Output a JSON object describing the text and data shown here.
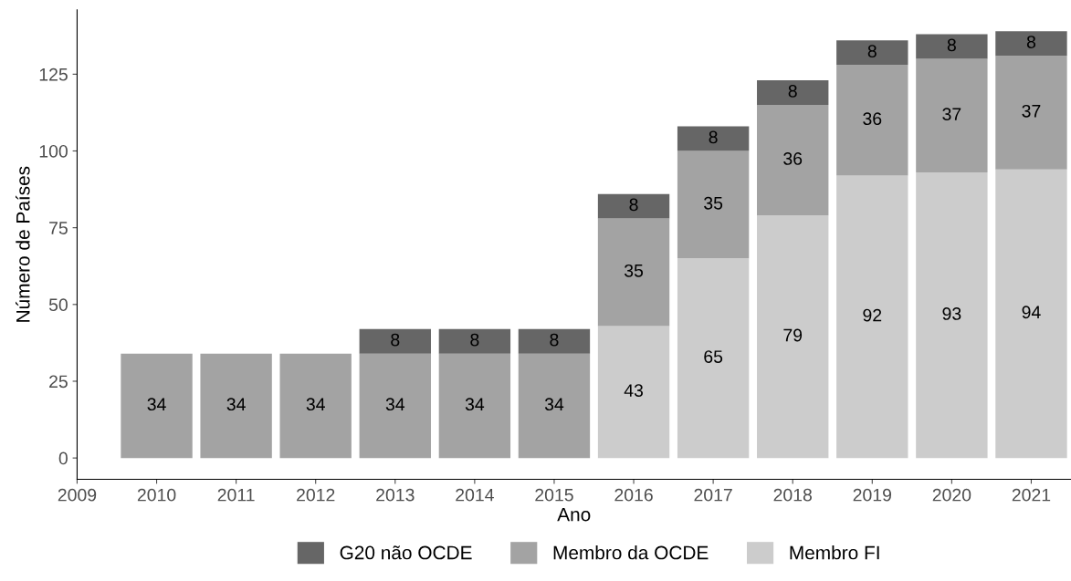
{
  "chart_data": {
    "type": "bar",
    "stacked": true,
    "xlabel": "Ano",
    "ylabel": "Número de Países",
    "x": [
      2010,
      2011,
      2012,
      2013,
      2014,
      2015,
      2016,
      2017,
      2018,
      2019,
      2020,
      2021
    ],
    "series": [
      {
        "name": "Membro FI",
        "color": "#cccccc",
        "values": [
          null,
          null,
          null,
          null,
          null,
          null,
          43,
          65,
          79,
          92,
          93,
          94
        ]
      },
      {
        "name": "Membro da OCDE",
        "color": "#a3a3a3",
        "values": [
          34,
          34,
          34,
          34,
          34,
          34,
          35,
          35,
          36,
          36,
          37,
          37
        ]
      },
      {
        "name": "G20 não OCDE",
        "color": "#666666",
        "values": [
          null,
          null,
          null,
          8,
          8,
          8,
          8,
          8,
          8,
          8,
          8,
          8
        ]
      }
    ],
    "xlim": [
      2009,
      2021.5
    ],
    "xticks": [
      2009,
      2010,
      2011,
      2012,
      2013,
      2014,
      2015,
      2016,
      2017,
      2018,
      2019,
      2020,
      2021
    ],
    "ylim": [
      -6.95,
      145.95
    ],
    "yticks": [
      0,
      25,
      50,
      75,
      100,
      125
    ],
    "data_labels": true,
    "grid": false,
    "legend": "bottom"
  }
}
